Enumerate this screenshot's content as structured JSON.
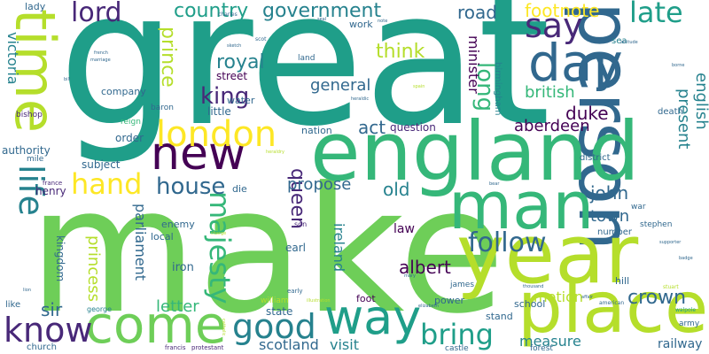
{
  "palette": {
    "yellow": "#fde725",
    "yellow_green": "#b5de2b",
    "light_green": "#6ece58",
    "green": "#35b779",
    "teal": "#1f9e89",
    "cyan": "#26828e",
    "blue": "#31688e",
    "indigo": "#3e4989",
    "purple": "#482878",
    "dark": "#440154"
  },
  "words": [
    "great",
    "make",
    "person",
    "time",
    "england",
    "year",
    "place",
    "man",
    "come",
    "way",
    "day",
    "new",
    "life",
    "london",
    "know",
    "say",
    "good",
    "bring",
    "lord",
    "hand",
    "majesty",
    "follow",
    "king",
    "house",
    "late",
    "prince",
    "queen",
    "government",
    "country",
    "royal",
    "footnote",
    "road",
    "long",
    "think",
    "crown",
    "john",
    "albert",
    "duke",
    "princess",
    "old",
    "british",
    "minister",
    "general",
    "english",
    "present",
    "act",
    "propose",
    "aberdeen",
    "victoria",
    "sir",
    "letter",
    "town",
    "ireland",
    "visit",
    "scotland",
    "parliament",
    "motion",
    "measure",
    "railway",
    "law",
    "street",
    "question",
    "little",
    "water",
    "company",
    "order",
    "subject",
    "kingdom",
    "authority",
    "henry",
    "iron",
    "state",
    "earl",
    "foot",
    "power",
    "school",
    "stand",
    "hill",
    "nation",
    "enemy",
    "local",
    "die",
    "birmingham",
    "death",
    "number",
    "district",
    "lady",
    "reign",
    "baron",
    "castle",
    "forest",
    "church",
    "bishop",
    "work",
    "land",
    "army",
    "like",
    "william",
    "james",
    "george",
    "sea",
    "war",
    "stephen",
    "mile",
    "france",
    "son",
    "early",
    "francis",
    "protestant",
    "bear",
    "american",
    "walpole",
    "stuart",
    "charles",
    "scot",
    "sketch",
    "french",
    "marriage",
    "bill",
    "heraldic",
    "attitude",
    "borne",
    "spain",
    "elizabeth",
    "note",
    "seal",
    "lion",
    "badge",
    "supporter",
    "affair",
    "thousand",
    "illustration",
    "catholic",
    "mary",
    "heraldry",
    "charge"
  ]
}
